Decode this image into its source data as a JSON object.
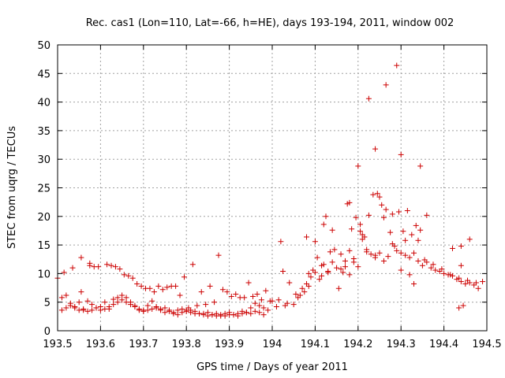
{
  "chart_data": {
    "type": "scatter",
    "title": "Rec. cas1 (Lon=110, Lat=-66, h=HE), days 193-194, 2011, window 002",
    "xlabel": "GPS time / Days of year 2011",
    "ylabel": "STEC from uqrg / TECUs",
    "xlim": [
      193.5,
      194.5
    ],
    "ylim": [
      0,
      50
    ],
    "xticks": [
      193.5,
      193.6,
      193.7,
      193.8,
      193.9,
      194.0,
      194.1,
      194.2,
      194.3,
      194.4,
      194.5
    ],
    "xtick_labels": [
      "193.5",
      "193.6",
      "193.7",
      "193.8",
      "193.9",
      "194",
      "194.1",
      "194.2",
      "194.3",
      "194.4",
      "194.5"
    ],
    "yticks": [
      0,
      5,
      10,
      15,
      20,
      25,
      30,
      35,
      40,
      45,
      50
    ],
    "ytick_labels": [
      "0",
      "5",
      "10",
      "15",
      "20",
      "25",
      "30",
      "35",
      "40",
      "45",
      "50"
    ],
    "grid": true,
    "marker": "+",
    "color": "#cc0000",
    "x": [
      193.5,
      193.51,
      193.52,
      193.53,
      193.54,
      193.55,
      193.56,
      193.57,
      193.58,
      193.59,
      193.6,
      193.61,
      193.62,
      193.63,
      193.64,
      193.65,
      193.66,
      193.67,
      193.68,
      193.69,
      193.7,
      193.71,
      193.72,
      193.73,
      193.74,
      193.75,
      193.76,
      193.77,
      193.78,
      193.79,
      193.8,
      193.81,
      193.82,
      193.83,
      193.84,
      193.85,
      193.86,
      193.87,
      193.88,
      193.89,
      193.9,
      193.91,
      193.92,
      193.93,
      193.94,
      193.95,
      193.96,
      193.97,
      193.98,
      193.99,
      193.51,
      193.52,
      193.53,
      193.54,
      193.55,
      193.56,
      193.57,
      193.58,
      193.59,
      193.6,
      193.61,
      193.62,
      193.63,
      193.64,
      193.65,
      193.66,
      193.67,
      193.68,
      193.69,
      193.7,
      193.71,
      193.72,
      193.73,
      193.74,
      193.75,
      193.76,
      193.77,
      193.78,
      193.79,
      193.8,
      193.81,
      193.82,
      193.83,
      193.84,
      193.85,
      193.86,
      193.87,
      193.88,
      193.89,
      193.9,
      193.91,
      193.92,
      193.93,
      193.94,
      193.95,
      193.96,
      193.97,
      193.98,
      193.515,
      193.535,
      193.555,
      193.575,
      193.595,
      193.615,
      193.635,
      193.655,
      193.675,
      193.695,
      193.715,
      193.735,
      193.755,
      193.775,
      193.795,
      193.815,
      193.835,
      193.855,
      193.875,
      193.895,
      193.915,
      193.935,
      193.955,
      193.975,
      193.995,
      193.555,
      193.575,
      193.585,
      193.625,
      193.645,
      193.665,
      193.685,
      193.705,
      193.725,
      193.745,
      193.765,
      193.785,
      193.805,
      193.825,
      193.845,
      193.865,
      193.885,
      193.905,
      193.925,
      193.945,
      193.965,
      193.985,
      194.0,
      194.01,
      194.02,
      194.03,
      194.04,
      194.05,
      194.06,
      194.07,
      194.08,
      194.09,
      194.1,
      194.11,
      194.12,
      194.13,
      194.14,
      194.15,
      194.16,
      194.17,
      194.18,
      194.19,
      194.2,
      194.21,
      194.22,
      194.23,
      194.24,
      194.25,
      194.26,
      194.27,
      194.28,
      194.29,
      194.3,
      194.31,
      194.32,
      194.33,
      194.34,
      194.35,
      194.36,
      194.37,
      194.38,
      194.39,
      194.4,
      194.41,
      194.42,
      194.43,
      194.44,
      194.45,
      194.46,
      194.47,
      194.48,
      194.49,
      194.015,
      194.035,
      194.055,
      194.075,
      194.085,
      194.095,
      194.105,
      194.115,
      194.125,
      194.135,
      194.145,
      194.155,
      194.165,
      194.175,
      194.185,
      194.195,
      194.205,
      194.215,
      194.225,
      194.235,
      194.245,
      194.255,
      194.265,
      194.275,
      194.285,
      194.295,
      194.305,
      194.315,
      194.325,
      194.335,
      194.345,
      194.355,
      194.375,
      194.395,
      194.415,
      194.435,
      194.455,
      194.475,
      194.065,
      194.08,
      194.1,
      194.12,
      194.14,
      194.16,
      194.18,
      194.2,
      194.22,
      194.24,
      194.26,
      194.28,
      194.3,
      194.32,
      194.34,
      194.36,
      194.42,
      194.44,
      194.46,
      194.025,
      194.085,
      194.115,
      194.13,
      194.17,
      194.18,
      194.19,
      194.205,
      194.21,
      194.225,
      194.24,
      194.25,
      194.265,
      194.29,
      194.3,
      194.31,
      194.33,
      194.345,
      194.44,
      194.435,
      194.445
    ],
    "y": [
      9.2,
      5.8,
      6.2,
      4.8,
      4.2,
      5.0,
      3.6,
      5.2,
      4.6,
      4.0,
      4.2,
      5.0,
      3.8,
      5.5,
      5.8,
      6.2,
      5.8,
      5.0,
      4.4,
      3.6,
      3.4,
      4.4,
      5.2,
      4.2,
      3.8,
      4.0,
      3.6,
      3.2,
      3.6,
      3.8,
      3.6,
      3.6,
      3.4,
      3.0,
      3.0,
      3.2,
      2.8,
      3.0,
      2.6,
      3.0,
      3.2,
      2.8,
      3.0,
      3.4,
      3.2,
      4.0,
      4.8,
      4.4,
      4.0,
      3.6,
      3.6,
      4.0,
      4.4,
      4.0,
      3.6,
      3.8,
      3.4,
      3.6,
      4.0,
      3.6,
      3.8,
      4.2,
      4.6,
      5.0,
      5.4,
      5.0,
      4.6,
      4.2,
      3.8,
      3.6,
      3.6,
      3.8,
      4.0,
      3.6,
      3.2,
      3.4,
      3.0,
      2.8,
      3.2,
      3.4,
      3.2,
      3.0,
      3.0,
      2.8,
      2.6,
      2.8,
      2.6,
      2.8,
      2.6,
      2.8,
      2.8,
      2.6,
      3.0,
      3.2,
      3.0,
      3.4,
      3.2,
      2.8,
      10.2,
      11.0,
      12.8,
      11.8,
      11.2,
      11.6,
      11.2,
      9.8,
      9.2,
      7.8,
      7.4,
      7.8,
      7.6,
      7.8,
      9.4,
      11.6,
      6.8,
      7.8,
      13.2,
      6.8,
      6.4,
      5.8,
      6.0,
      5.4,
      5.2,
      6.8,
      11.4,
      11.2,
      11.4,
      10.8,
      9.6,
      8.2,
      7.4,
      6.8,
      7.2,
      7.8,
      6.2,
      4.0,
      4.4,
      4.6,
      5.0,
      7.2,
      6.0,
      5.8,
      8.4,
      6.4,
      7.0,
      5.2,
      4.2,
      15.6,
      4.4,
      8.4,
      4.6,
      5.8,
      7.4,
      8.2,
      9.4,
      10.2,
      9.0,
      11.6,
      10.4,
      12.0,
      11.0,
      10.8,
      12.2,
      14.0,
      12.6,
      11.2,
      16.0,
      13.8,
      13.4,
      12.8,
      13.6,
      12.2,
      13.0,
      15.2,
      14.0,
      13.6,
      13.2,
      12.8,
      13.6,
      12.2,
      11.4,
      12.0,
      11.0,
      10.6,
      10.4,
      10.0,
      9.8,
      9.6,
      9.0,
      8.6,
      8.2,
      8.4,
      8.0,
      7.4,
      8.6,
      5.4,
      4.8,
      6.4,
      6.8,
      7.8,
      10.6,
      12.8,
      11.4,
      20.0,
      13.8,
      14.2,
      7.4,
      10.2,
      22.2,
      17.8,
      19.8,
      18.6,
      16.4,
      20.2,
      23.8,
      24.0,
      22.0,
      21.2,
      17.2,
      14.8,
      20.8,
      17.4,
      21.0,
      16.8,
      18.4,
      17.6,
      12.4,
      11.6,
      10.8,
      9.8,
      9.2,
      8.8,
      8.4,
      6.2,
      16.4,
      15.6,
      18.6,
      17.6,
      13.4,
      22.4,
      28.8,
      14.2,
      13.2,
      19.8,
      20.4,
      10.6,
      9.8,
      15.8,
      20.2,
      14.4,
      14.8,
      16.0,
      10.4,
      10.0,
      9.6,
      10.2,
      11.2,
      9.8,
      12.0,
      17.4,
      16.8,
      40.6,
      31.8,
      23.4,
      43.0,
      46.4,
      30.8,
      15.8,
      8.2,
      28.8,
      11.4,
      4.0,
      4.4
    ]
  }
}
